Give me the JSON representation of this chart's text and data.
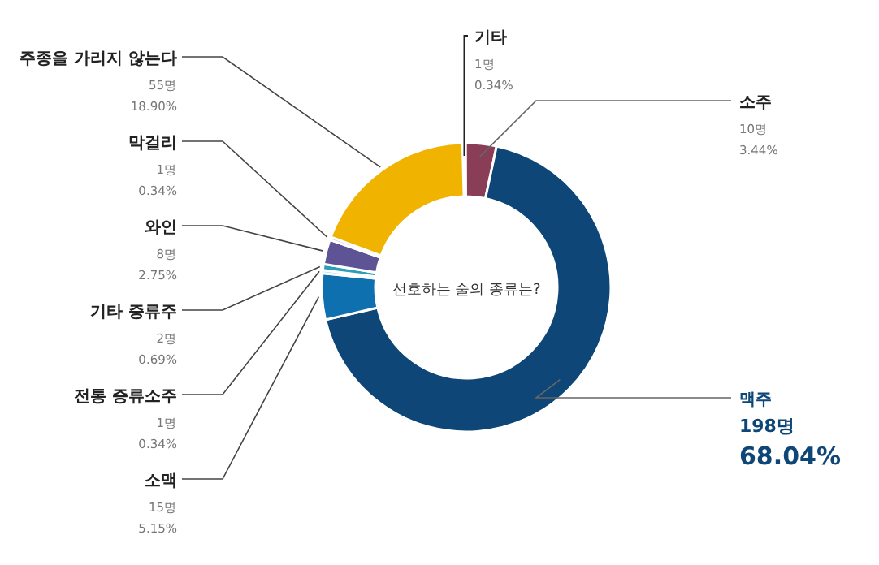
{
  "chart_data": {
    "type": "donut",
    "title": "선호하는 술의 종류는?",
    "categories": [
      "기타",
      "소주",
      "맥주",
      "소맥",
      "전통 증류소주",
      "기타 증류주",
      "와인",
      "막걸리",
      "주종을 가리지 않는다"
    ],
    "values": [
      1,
      10,
      198,
      15,
      1,
      2,
      8,
      1,
      55
    ],
    "colors": [
      "#f2d6d6",
      "#8a3d56",
      "#0d4677",
      "#0f70b0",
      "#8fd0e0",
      "#2a9fb8",
      "#5e5394",
      "#c9c0dc",
      "#f0b300"
    ],
    "value_labels": [
      "1명\n0.34%",
      "10명\n3.44%",
      "198명\n68.04%",
      "15명\n5.15%",
      "1명\n0.34%",
      "2명\n0.69%",
      "8명\n2.75%",
      "1명\n0.34%",
      "55명\n18.90%"
    ]
  }
}
